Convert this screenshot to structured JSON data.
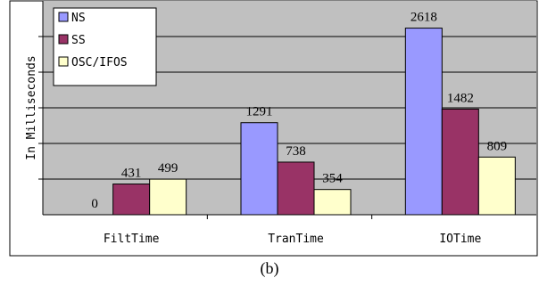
{
  "chart_data": {
    "type": "bar",
    "categories": [
      "FiltTime",
      "TranTime",
      "IOTime"
    ],
    "series": [
      {
        "name": "NS",
        "values": [
          0,
          1291,
          2618
        ],
        "labels": [
          "0",
          "1291",
          "2618"
        ],
        "color": "#9999ff"
      },
      {
        "name": "SS",
        "values": [
          431,
          738,
          1482
        ],
        "labels": [
          "431",
          "738",
          "1482"
        ],
        "color": "#993366"
      },
      {
        "name": "OSC/IFOS",
        "values": [
          499,
          354,
          809
        ],
        "labels": [
          "499",
          "354",
          "809"
        ],
        "color": "#ffffcc"
      }
    ],
    "ylabel": "In Milliseconds",
    "ylim": [
      0,
      3000
    ],
    "grid": true,
    "legend_position": "top-left",
    "plot_background": "#c0c0c0",
    "caption": "(b)"
  }
}
